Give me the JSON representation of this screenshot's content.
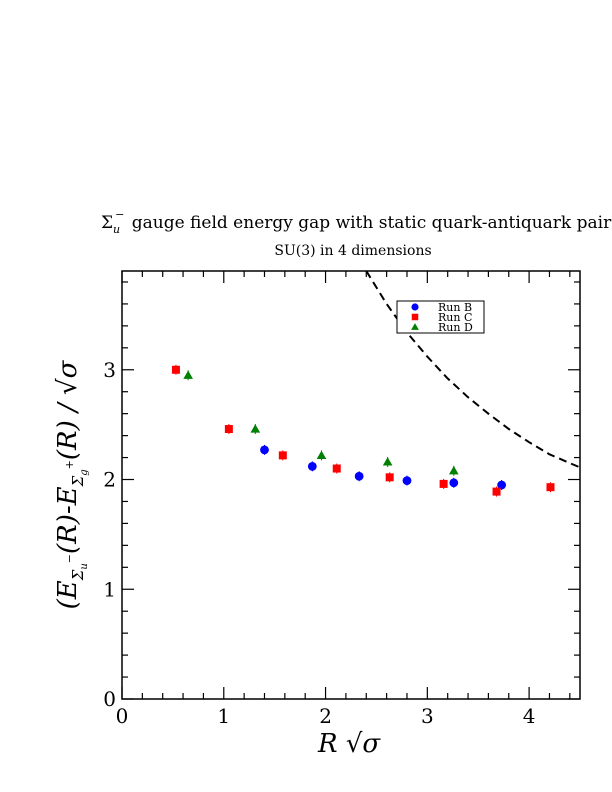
{
  "chart_data": {
    "type": "scatter",
    "title": {
      "symbol": "Σ",
      "sub": "u",
      "sup": "−",
      "text": " gauge field energy gap with static quark-antiquark pair"
    },
    "subtitle": "SU(3) in 4 dimensions",
    "xlabel": "R √σ",
    "ylabel": "(E_{Σ_u^−}(R)-E_{Σ_g^+}(R) / √σ",
    "xlim": [
      0,
      4.5
    ],
    "ylim": [
      0,
      3.9
    ],
    "x_ticks": [
      "0",
      "1",
      "2",
      "3",
      "4"
    ],
    "y_ticks": [
      "0",
      "1",
      "2",
      "3"
    ],
    "legend_position": "top-right",
    "series": [
      {
        "name": "Run B",
        "marker": "circle",
        "color": "#0000ff",
        "points": [
          {
            "x": 1.4,
            "y": 2.27
          },
          {
            "x": 1.87,
            "y": 2.12
          },
          {
            "x": 2.33,
            "y": 2.03
          },
          {
            "x": 2.8,
            "y": 1.99
          },
          {
            "x": 3.26,
            "y": 1.97
          },
          {
            "x": 3.73,
            "y": 1.95
          }
        ]
      },
      {
        "name": "Run C",
        "marker": "square",
        "color": "#ff0000",
        "points": [
          {
            "x": 0.53,
            "y": 3.0
          },
          {
            "x": 1.05,
            "y": 2.46
          },
          {
            "x": 1.58,
            "y": 2.22
          },
          {
            "x": 2.11,
            "y": 2.1
          },
          {
            "x": 2.63,
            "y": 2.02
          },
          {
            "x": 3.16,
            "y": 1.96
          },
          {
            "x": 3.68,
            "y": 1.89
          },
          {
            "x": 4.21,
            "y": 1.93
          }
        ]
      },
      {
        "name": "Run D",
        "marker": "triangle",
        "color": "#008000",
        "points": [
          {
            "x": 0.65,
            "y": 2.95
          },
          {
            "x": 1.31,
            "y": 2.46
          },
          {
            "x": 1.96,
            "y": 2.22
          },
          {
            "x": 2.61,
            "y": 2.16
          },
          {
            "x": 3.26,
            "y": 2.08
          }
        ]
      }
    ],
    "reference_curve": {
      "style": "dashed",
      "color": "#000000",
      "points": [
        {
          "x": 2.4,
          "y": 3.9
        },
        {
          "x": 2.6,
          "y": 3.6
        },
        {
          "x": 2.8,
          "y": 3.34
        },
        {
          "x": 3.0,
          "y": 3.12
        },
        {
          "x": 3.2,
          "y": 2.92
        },
        {
          "x": 3.4,
          "y": 2.75
        },
        {
          "x": 3.6,
          "y": 2.6
        },
        {
          "x": 3.8,
          "y": 2.46
        },
        {
          "x": 4.0,
          "y": 2.34
        },
        {
          "x": 4.2,
          "y": 2.23
        },
        {
          "x": 4.4,
          "y": 2.15
        },
        {
          "x": 4.5,
          "y": 2.11
        }
      ]
    }
  }
}
